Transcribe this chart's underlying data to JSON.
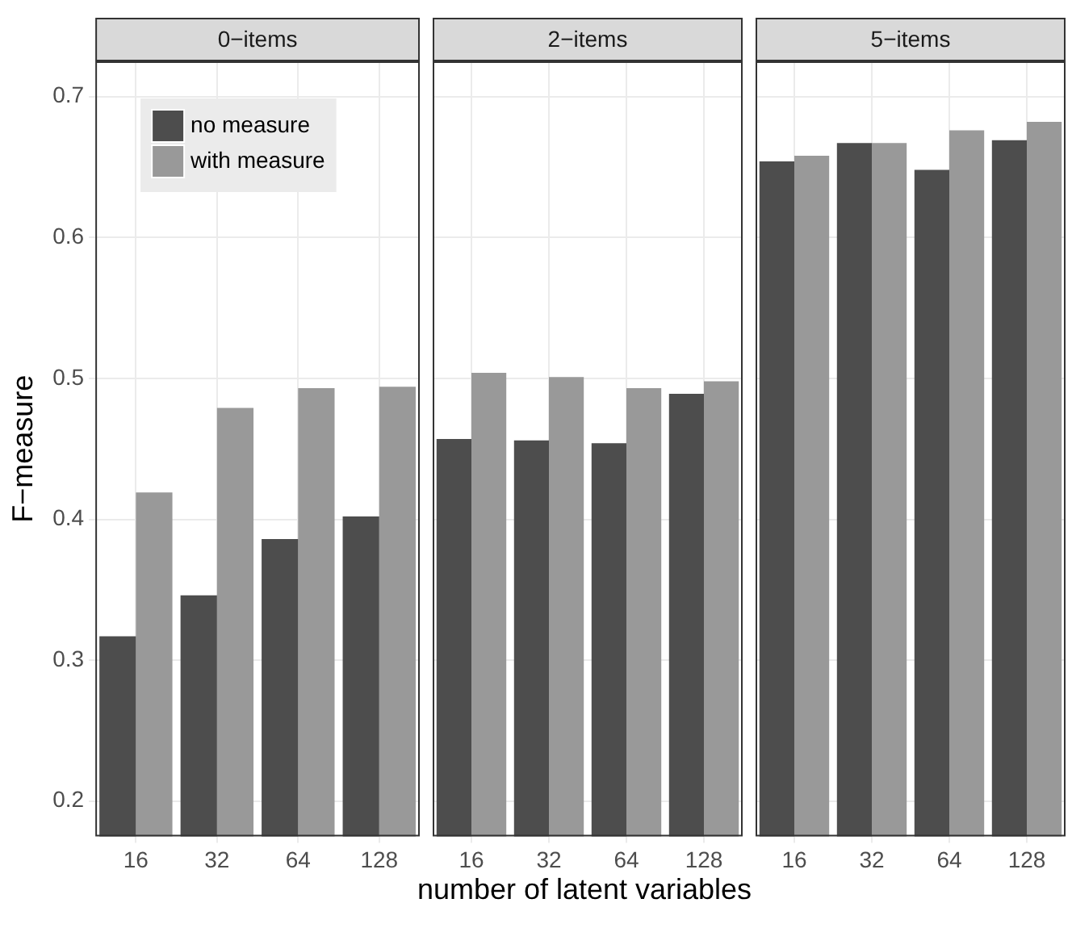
{
  "chart_data": [
    {
      "type": "bar",
      "title": "0−items",
      "ylabel": "F−measure",
      "categories": [
        "16",
        "32",
        "64",
        "128"
      ],
      "ylim": [
        0.175,
        0.725
      ],
      "yticks": [
        0.2,
        0.3,
        0.4,
        0.5,
        0.6,
        0.7
      ],
      "grid": true,
      "legend": "top left",
      "series": [
        {
          "name": "no measure",
          "color": "#4d4d4d",
          "values": [
            0.317,
            0.346,
            0.386,
            0.402
          ]
        },
        {
          "name": "with measure",
          "color": "#999999",
          "values": [
            0.419,
            0.479,
            0.493,
            0.494
          ]
        }
      ]
    },
    {
      "type": "bar",
      "title": "2−items",
      "xlabel": "number of latent variables",
      "categories": [
        "16",
        "32",
        "64",
        "128"
      ],
      "ylim": [
        0.175,
        0.725
      ],
      "yticks": [
        0.2,
        0.3,
        0.4,
        0.5,
        0.6,
        0.7
      ],
      "grid": true,
      "tick_labels": "x",
      "series": [
        {
          "color": "#4d4d4d",
          "values": [
            0.457,
            0.456,
            0.454,
            0.489
          ]
        },
        {
          "color": "#999999",
          "values": [
            0.504,
            0.501,
            0.493,
            0.498
          ]
        }
      ]
    },
    {
      "type": "bar",
      "title": "5−items",
      "categories": [
        "16",
        "32",
        "64",
        "128"
      ],
      "ylim": [
        0.175,
        0.725
      ],
      "yticks": [
        0.2,
        0.3,
        0.4,
        0.5,
        0.6,
        0.7
      ],
      "grid": true,
      "tick_labels": "x",
      "series": [
        {
          "color": "#4d4d4d",
          "values": [
            0.654,
            0.667,
            0.648,
            0.669
          ]
        },
        {
          "color": "#999999",
          "values": [
            0.658,
            0.667,
            0.676,
            0.682
          ]
        }
      ]
    }
  ]
}
